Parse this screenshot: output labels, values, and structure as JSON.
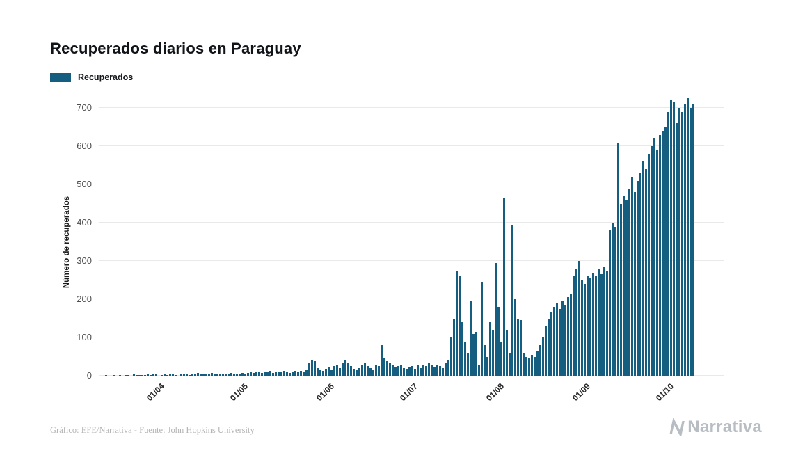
{
  "title": "Recuperados diarios en Paraguay",
  "legend": {
    "label": "Recuperados",
    "color": "#155e80"
  },
  "footer": {
    "credit": "Gráfico: EFE/Narrativa - Fuente: John Hopkins University"
  },
  "brand": {
    "name": "Narrativa",
    "icon": "narrativa-n-mark",
    "color": "#b7bdc3"
  },
  "chart_data": {
    "type": "bar",
    "title": "Recuperados diarios en Paraguay",
    "xlabel": "",
    "ylabel": "Número de recuperados",
    "ylim": [
      0,
      725
    ],
    "grid": true,
    "legend_position": "top-left",
    "bar_color": "#155e80",
    "yticks": [
      0,
      100,
      200,
      300,
      400,
      500,
      600,
      700
    ],
    "xticks": [
      "01/04",
      "01/05",
      "01/06",
      "01/07",
      "01/08",
      "01/09",
      "01/10"
    ],
    "xtick_indices": [
      20,
      50,
      81,
      111,
      142,
      173,
      203
    ],
    "values": [
      0,
      0,
      1,
      0,
      0,
      2,
      0,
      1,
      0,
      2,
      1,
      0,
      3,
      1,
      2,
      1,
      2,
      3,
      2,
      4,
      3,
      0,
      2,
      4,
      1,
      3,
      5,
      2,
      0,
      3,
      6,
      4,
      2,
      5,
      3,
      7,
      4,
      6,
      3,
      5,
      8,
      4,
      6,
      5,
      3,
      6,
      4,
      7,
      5,
      6,
      5,
      7,
      6,
      8,
      10,
      7,
      9,
      11,
      8,
      10,
      9,
      12,
      8,
      10,
      11,
      9,
      12,
      10,
      8,
      11,
      13,
      10,
      12,
      11,
      14,
      35,
      40,
      38,
      20,
      15,
      12,
      18,
      22,
      15,
      25,
      30,
      20,
      35,
      40,
      32,
      25,
      18,
      15,
      20,
      28,
      35,
      25,
      20,
      15,
      30,
      25,
      80,
      45,
      38,
      35,
      28,
      22,
      25,
      30,
      20,
      18,
      22,
      25,
      18,
      28,
      20,
      30,
      25,
      35,
      28,
      22,
      30,
      25,
      20,
      35,
      40,
      100,
      150,
      275,
      260,
      140,
      90,
      60,
      195,
      110,
      115,
      30,
      245,
      80,
      50,
      140,
      120,
      295,
      180,
      90,
      465,
      120,
      60,
      395,
      200,
      150,
      145,
      60,
      50,
      45,
      55,
      50,
      65,
      80,
      100,
      130,
      150,
      165,
      180,
      190,
      175,
      195,
      185,
      205,
      215,
      260,
      280,
      300,
      250,
      240,
      260,
      255,
      270,
      260,
      280,
      265,
      285,
      275,
      380,
      400,
      390,
      610,
      450,
      470,
      460,
      490,
      520,
      480,
      510,
      530,
      560,
      540,
      580,
      600,
      620,
      590,
      630,
      640,
      650,
      690,
      720,
      715,
      660,
      700,
      690,
      710,
      725,
      700,
      710
    ]
  }
}
